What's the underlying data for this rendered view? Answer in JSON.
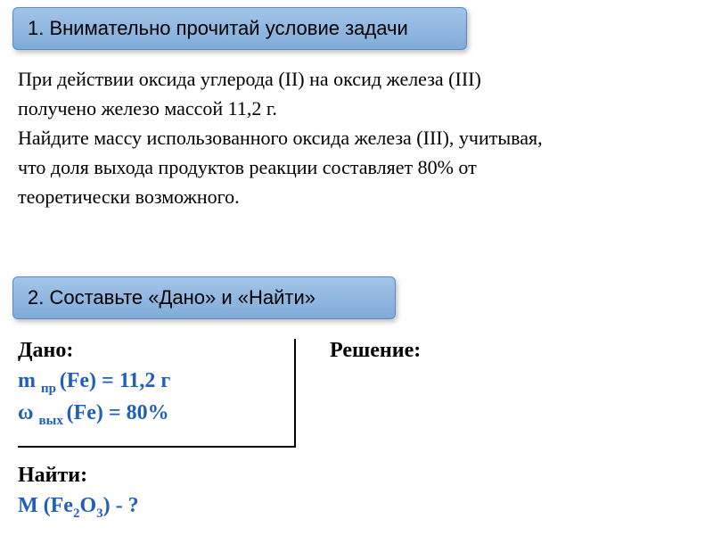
{
  "step1": {
    "text": "1. Внимательно прочитай условие задачи",
    "bg_gradient_top": "#a3c4e8",
    "bg_gradient_bottom": "#7fabd9",
    "border_color": "#5a8ac0",
    "font_size": 22,
    "text_color": "#000000"
  },
  "problem": {
    "line1": "При действии оксида углерода (II) на оксид железа (III)",
    "line2": "получено железо массой 11,2 г.",
    "line3": "Найдите массу использованного оксида железа (III), учитывая,",
    "line4": "что доля выхода продуктов реакции составляет 80% от",
    "line5": "теоретически возможного.",
    "font_family": "Times New Roman",
    "font_size": 22,
    "text_color": "#000000"
  },
  "step2": {
    "text": "2. Составьте  «Дано»   и    «Найти»",
    "bg_gradient_top": "#a3c4e8",
    "bg_gradient_bottom": "#7fabd9",
    "border_color": "#5a8ac0",
    "font_size": 22,
    "text_color": "#000000"
  },
  "given": {
    "label": "Дано:",
    "line1_prefix": "m ",
    "line1_sub": "пр ",
    "line1_rest": "(Fe) = 11,2 г",
    "line2_prefix": "ω ",
    "line2_sub": "вых ",
    "line2_rest": "(Fe) = 80%",
    "value_color": "#1f5fbf",
    "label_color": "#000000",
    "font_size": 24
  },
  "solve": {
    "label": "Решение:",
    "label_color": "#000000",
    "font_size": 24
  },
  "find": {
    "label": "Найти:",
    "line1_prefix": "M (Fe",
    "line1_sub1": "2",
    "line1_mid": "O",
    "line1_sub2": "3",
    "line1_rest": ") - ?",
    "value_color": "#1f5fbf",
    "label_color": "#000000",
    "font_size": 24
  },
  "divider": {
    "color": "#000000",
    "thickness": 2
  }
}
